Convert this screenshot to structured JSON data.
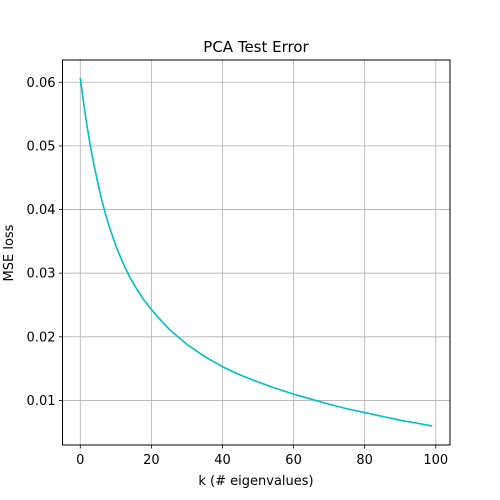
{
  "chart_data": {
    "type": "line",
    "title": "PCA Test Error",
    "xlabel": "k (# eigenvalues)",
    "ylabel": "MSE loss",
    "xlim": [
      -5,
      104
    ],
    "ylim": [
      0.003,
      0.0635
    ],
    "xticks": [
      0,
      20,
      40,
      60,
      80,
      100
    ],
    "xtick_labels": [
      "0",
      "20",
      "40",
      "60",
      "80",
      "100"
    ],
    "yticks": [
      0.01,
      0.02,
      0.03,
      0.04,
      0.05,
      0.06
    ],
    "ytick_labels": [
      "0.01",
      "0.02",
      "0.03",
      "0.04",
      "0.05",
      "0.06"
    ],
    "grid": true,
    "line_color": "#00bfbf",
    "series": [
      {
        "x": [
          0,
          1,
          2,
          3,
          4,
          5,
          6,
          7,
          8,
          10,
          12,
          14,
          16,
          18,
          20,
          22,
          25,
          30,
          35,
          40,
          45,
          50,
          55,
          60,
          65,
          70,
          75,
          80,
          85,
          90,
          95,
          99
        ],
        "values": [
          0.0607,
          0.0565,
          0.0528,
          0.0495,
          0.0466,
          0.044,
          0.0416,
          0.0395,
          0.0376,
          0.0343,
          0.0316,
          0.0293,
          0.0274,
          0.0257,
          0.0243,
          0.023,
          0.0212,
          0.0188,
          0.0169,
          0.0153,
          0.014,
          0.0129,
          0.0119,
          0.011,
          0.0102,
          0.0094,
          0.0087,
          0.0081,
          0.0075,
          0.0069,
          0.0064,
          0.006
        ]
      }
    ]
  }
}
